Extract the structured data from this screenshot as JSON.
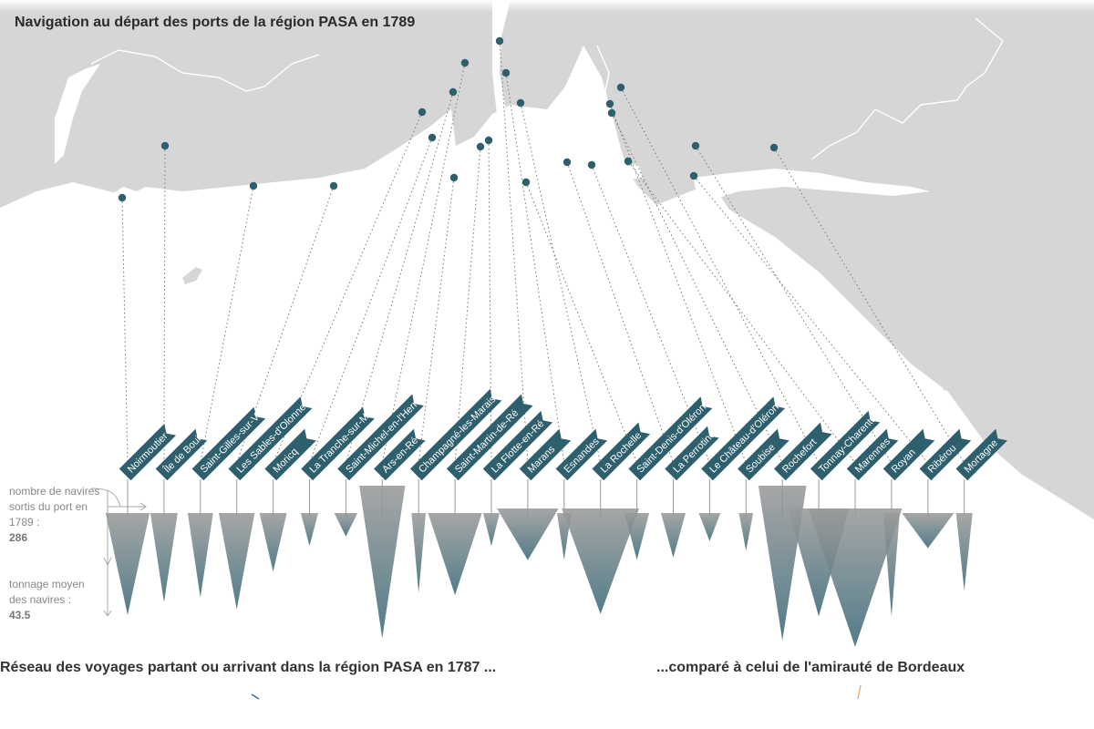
{
  "title": "Navigation au départ des ports de la région PASA en 1789",
  "subtitles": {
    "left": "Réseau des voyages partant ou arrivant dans la région PASA en 1787 ...",
    "right": "...comparé à celui de l'amirauté de Bordeaux"
  },
  "legend": {
    "count_label": "nombre de navires sortis du port en 1789 :",
    "count_value": "286",
    "tonnage_label": "tonnage moyen des navires :",
    "tonnage_value": "43.5"
  },
  "colors": {
    "land": "#d6d6d6",
    "sea": "#ffffff",
    "dot": "#2e5f6d",
    "flag": "#2e5f6d",
    "triangle_top": "#9a9a9a",
    "triangle_bottom": "#3a6a78",
    "leader": "#777777"
  },
  "chart_data": {
    "type": "bar",
    "encoding": "triangles: width = nombre de navires sortis, height = tonnage moyen",
    "ports": [
      {
        "name": "Noirmoutier",
        "ships": 286,
        "tonnage": 43.5
      },
      {
        "name": "Île de Bouin",
        "ships": 110,
        "tonnage": 38
      },
      {
        "name": "Saint-Gilles-sur-Vie",
        "ships": 95,
        "tonnage": 36
      },
      {
        "name": "Les Sables-d'Olonne",
        "ships": 190,
        "tonnage": 41
      },
      {
        "name": "Moricq",
        "ships": 110,
        "tonnage": 25
      },
      {
        "name": "La Tranche-sur-Mer",
        "ships": 45,
        "tonnage": 14
      },
      {
        "name": "Saint-Michel-en-l'Herm",
        "ships": 80,
        "tonnage": 10
      },
      {
        "name": "Ars-en-Ré",
        "ships": 310,
        "tonnage": 65
      },
      {
        "name": "Champagné-les-Marais",
        "ships": 30,
        "tonnage": 34
      },
      {
        "name": "Saint-Martin-de-Ré",
        "ships": 430,
        "tonnage": 35
      },
      {
        "name": "La Flotte-en-Ré",
        "ships": 40,
        "tonnage": 14
      },
      {
        "name": "Marans",
        "ships": 560,
        "tonnage": 22
      },
      {
        "name": "Esnandes",
        "ships": 30,
        "tonnage": 20
      },
      {
        "name": "La Rochelle",
        "ships": 880,
        "tonnage": 45
      },
      {
        "name": "Saint-Denis-d'Oléron",
        "ships": 90,
        "tonnage": 20
      },
      {
        "name": "La Perrotine",
        "ships": 90,
        "tonnage": 19
      },
      {
        "name": "Le Château-d'Oléron",
        "ships": 70,
        "tonnage": 12
      },
      {
        "name": "Soubise",
        "ships": 30,
        "tonnage": 16
      },
      {
        "name": "Rochefort",
        "ships": 340,
        "tonnage": 66
      },
      {
        "name": "Tonnay-Charente",
        "ships": 550,
        "tonnage": 46
      },
      {
        "name": "Marennes",
        "ships": 1300,
        "tonnage": 59
      },
      {
        "name": "Royan",
        "ships": 40,
        "tonnage": 44
      },
      {
        "name": "Ribérou",
        "ships": 400,
        "tonnage": 15
      },
      {
        "name": "Mortagne",
        "ships": 40,
        "tonnage": 33
      }
    ]
  }
}
